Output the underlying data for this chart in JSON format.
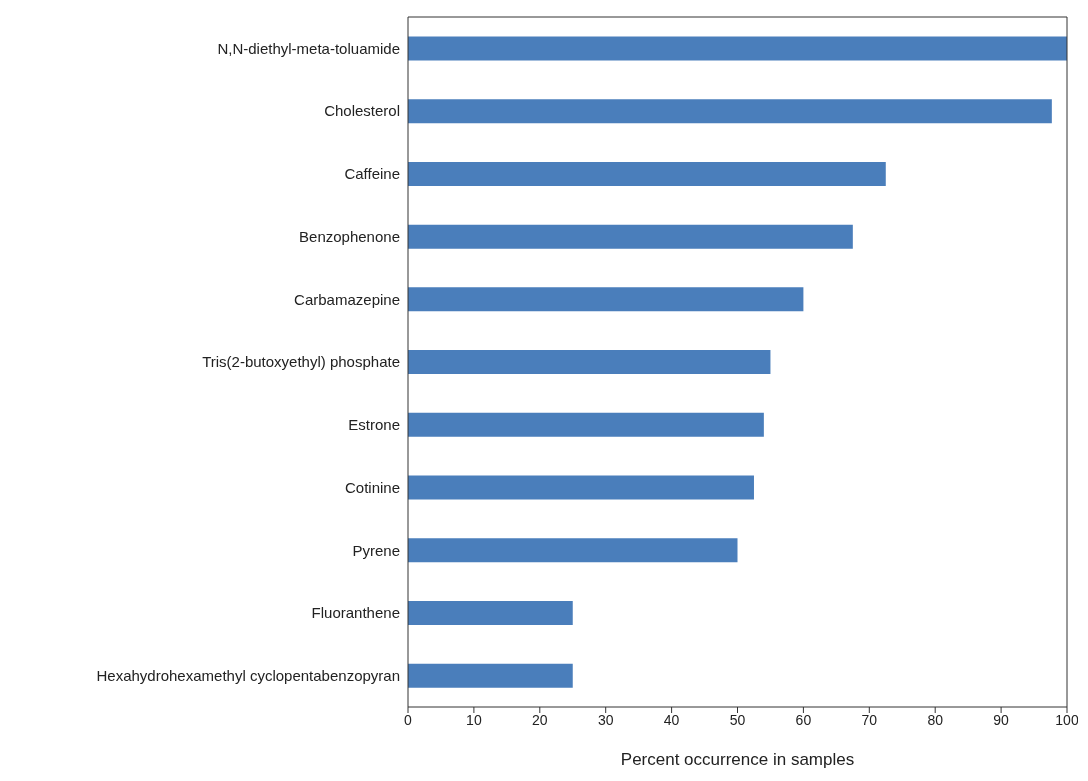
{
  "chart_data": {
    "type": "bar",
    "orientation": "horizontal",
    "xlabel": "Percent occurrence in samples",
    "categories": [
      "N,N-diethyl-meta-toluamide",
      "Cholesterol",
      "Caffeine",
      "Benzophenone",
      "Carbamazepine",
      "Tris(2-butoxyethyl) phosphate",
      "Estrone",
      "Cotinine",
      "Pyrene",
      "Fluoranthene",
      "Hexahydrohexamethyl cyclopentabenzopyran"
    ],
    "values": [
      100,
      97.7,
      72.5,
      67.5,
      60,
      55,
      54,
      52.5,
      50,
      25,
      25
    ],
    "color": "#4a7ebb",
    "xlim": [
      0,
      100
    ],
    "xticks": [
      0,
      10,
      20,
      30,
      40,
      50,
      60,
      70,
      80,
      90,
      100
    ],
    "grid": false,
    "legend": false
  }
}
